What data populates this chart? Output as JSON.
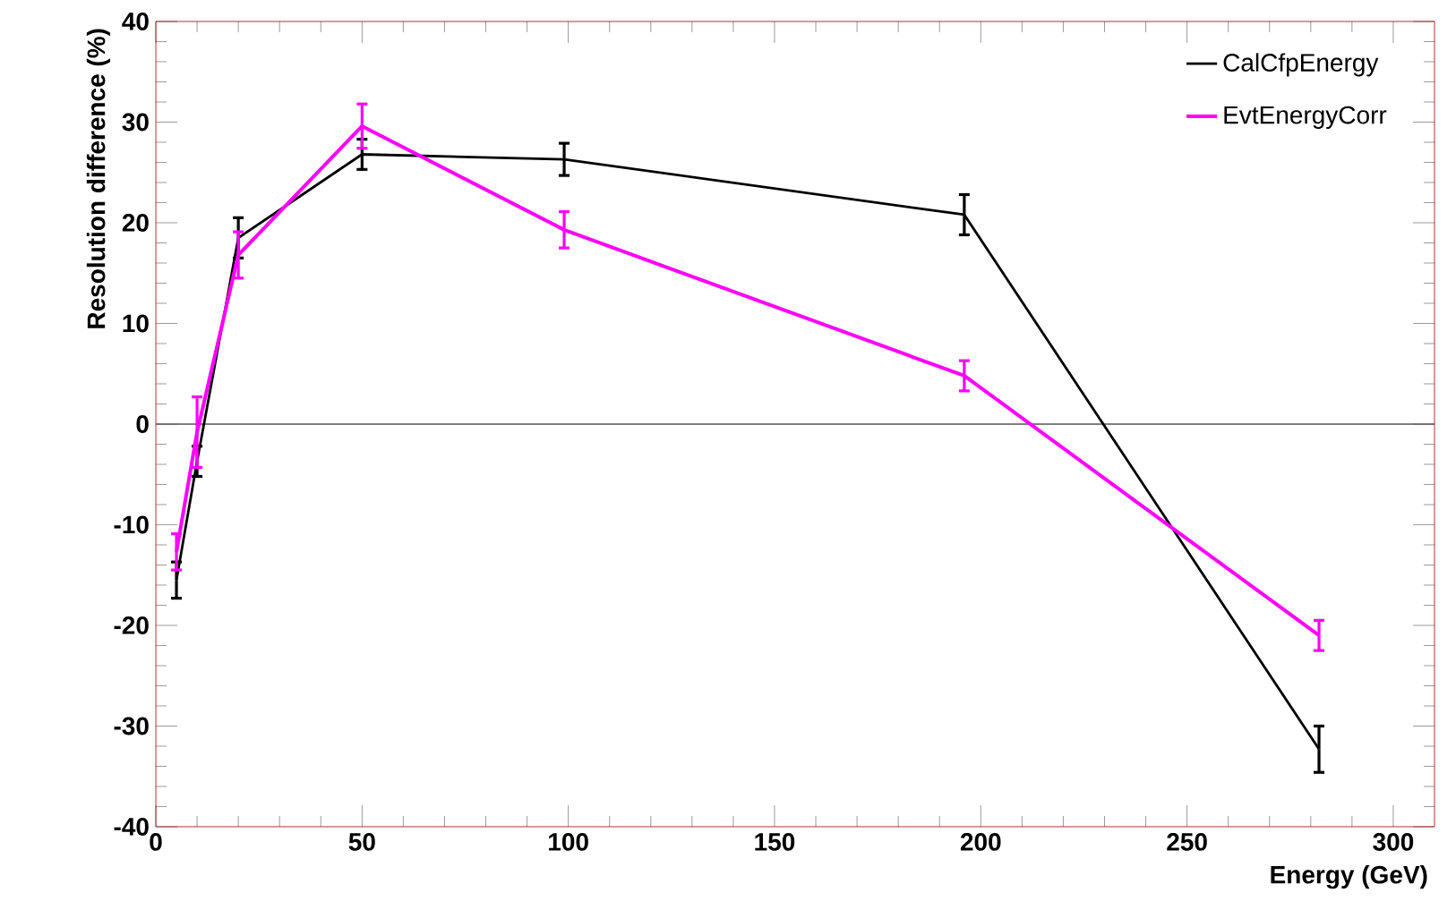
{
  "chart_data": {
    "type": "line",
    "xlabel": "Energy (GeV)",
    "ylabel": "Resolution difference (%)",
    "xlim": [
      0,
      310
    ],
    "ylim": [
      -40,
      40
    ],
    "xticks": [
      0,
      50,
      100,
      150,
      200,
      250,
      300
    ],
    "yticks": [
      -40,
      -30,
      -20,
      -10,
      0,
      10,
      20,
      30,
      40
    ],
    "legend": "top right",
    "marker": "none",
    "line_style": "solid",
    "grid": false,
    "ref_lines": [
      {
        "axis": "y",
        "value": 0,
        "color": "#555555"
      }
    ],
    "series": [
      {
        "name": "CalCfpEnergy",
        "color": "#000000",
        "x": [
          5,
          10,
          20,
          50,
          99,
          196,
          282
        ],
        "values": [
          -15.5,
          -3.7,
          18.5,
          26.8,
          26.3,
          20.8,
          -32.3
        ],
        "errors": [
          1.8,
          1.5,
          2,
          1.5,
          1.6,
          2,
          2.3
        ]
      },
      {
        "name": "EvtEnergyCorr",
        "color": "#ff00ff",
        "x": [
          5,
          10,
          20,
          50,
          99,
          196,
          282
        ],
        "values": [
          -12.7,
          -0.8,
          16.8,
          29.6,
          19.3,
          4.8,
          -21
        ],
        "errors": [
          1.8,
          3.5,
          2.3,
          2.2,
          1.8,
          1.5,
          1.5
        ]
      }
    ]
  }
}
